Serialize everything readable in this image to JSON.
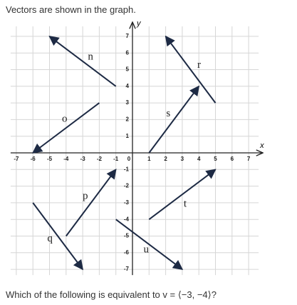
{
  "prompt": "Vectors are shown in the graph.",
  "graph": {
    "x_label": "x",
    "y_label": "y",
    "xlim": [
      -7,
      7
    ],
    "ylim": [
      -7,
      7
    ],
    "xticks": [
      -7,
      -6,
      -5,
      -4,
      -3,
      -2,
      -1,
      0,
      1,
      2,
      3,
      4,
      5,
      6,
      7
    ],
    "yticks": [
      -7,
      -6,
      -5,
      -4,
      -3,
      -2,
      -1,
      1,
      2,
      3,
      4,
      5,
      6,
      7
    ],
    "vectors": [
      {
        "label": "n",
        "tail": [
          -1,
          4
        ],
        "head": [
          -5,
          7
        ]
      },
      {
        "label": "o",
        "tail": [
          -2,
          3
        ],
        "head": [
          -6,
          0
        ]
      },
      {
        "label": "s",
        "tail": [
          1,
          0
        ],
        "head": [
          4,
          4
        ]
      },
      {
        "label": "r",
        "tail": [
          5,
          3
        ],
        "head": [
          2,
          7
        ]
      },
      {
        "label": "p",
        "tail": [
          -4,
          -5
        ],
        "head": [
          -1,
          -1
        ]
      },
      {
        "label": "q",
        "tail": [
          -6,
          -3
        ],
        "head": [
          -3,
          -7
        ]
      },
      {
        "label": "u",
        "tail": [
          -1,
          -4
        ],
        "head": [
          3,
          -7
        ]
      },
      {
        "label": "t",
        "tail": [
          1,
          -4
        ],
        "head": [
          5,
          -1
        ]
      }
    ]
  },
  "question": "Which of the following is equivalent to v = ⟨−3, −4⟩?"
}
